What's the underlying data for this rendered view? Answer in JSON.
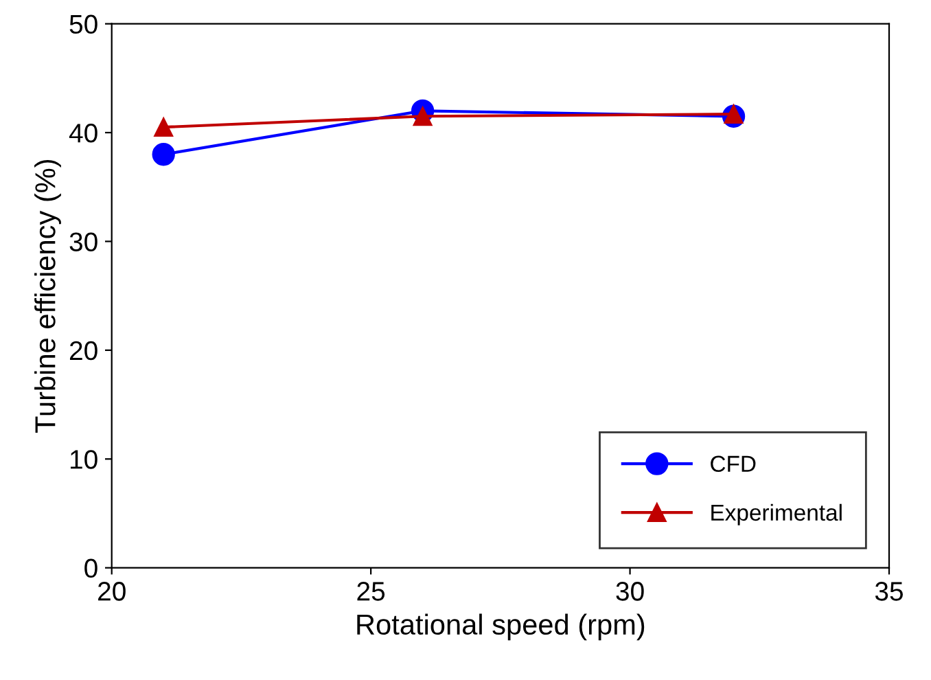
{
  "chart_data": {
    "type": "line",
    "xlabel": "Rotational speed (rpm)",
    "ylabel": "Turbine efficiency (%)",
    "x": [
      21,
      26,
      32
    ],
    "series": [
      {
        "name": "CFD",
        "color": "#0000ff",
        "values": [
          38,
          42,
          41.5
        ],
        "marker": "circle"
      },
      {
        "name": "Experimental",
        "color": "#c00000",
        "values": [
          40.5,
          41.5,
          41.7
        ],
        "marker": "triangle"
      }
    ],
    "xlim": [
      20,
      35
    ],
    "xticks": [
      20,
      25,
      30,
      35
    ],
    "ylim": [
      0,
      50
    ],
    "yticks": [
      0,
      10,
      20,
      30,
      40,
      50
    ],
    "grid": false,
    "legend": "bottom right",
    "line_style": "solid"
  }
}
